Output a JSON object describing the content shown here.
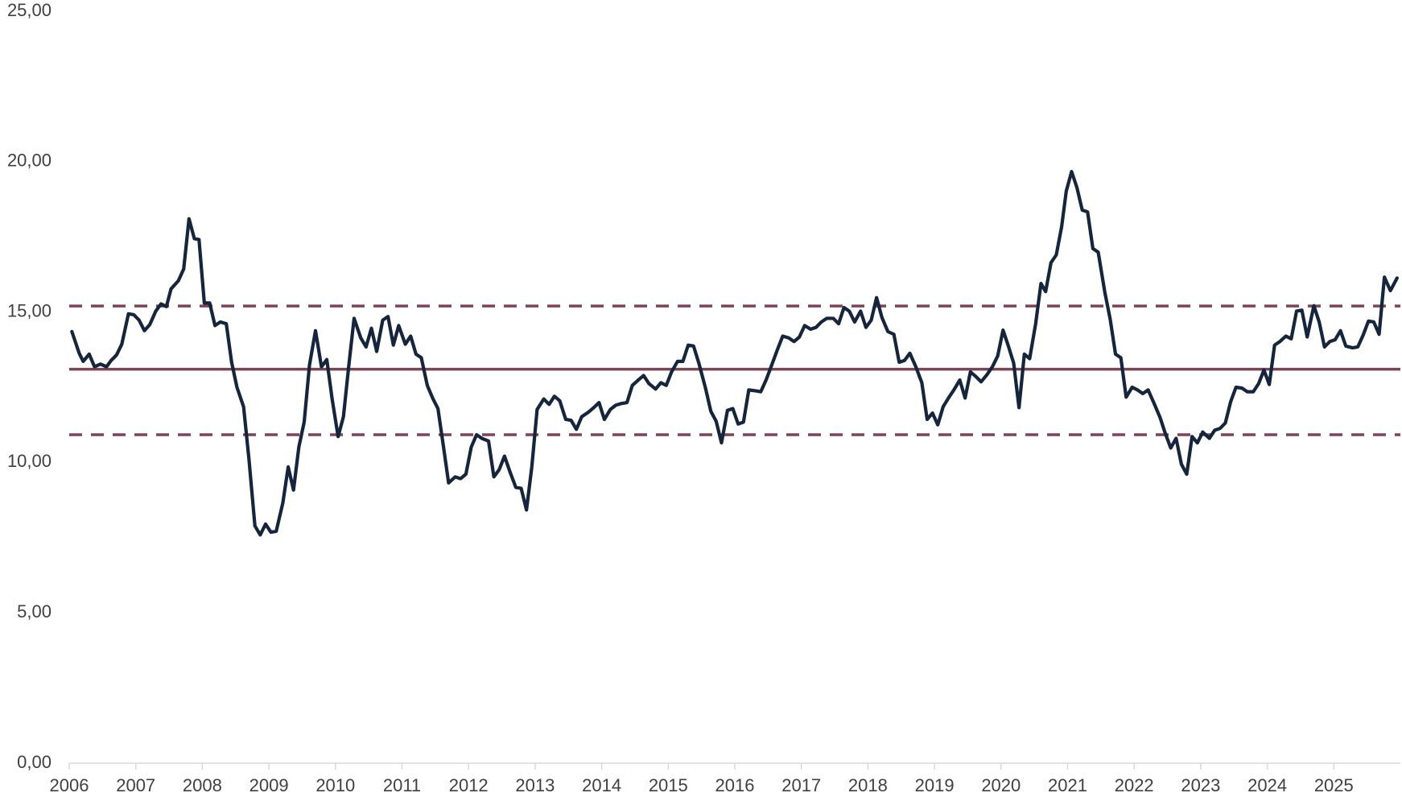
{
  "chart_data": {
    "type": "line",
    "x": [
      2006.04,
      2006.15,
      2006.21,
      2006.3,
      2006.38,
      2006.47,
      2006.56,
      2006.63,
      2006.71,
      2006.79,
      2006.89,
      2006.97,
      2007.05,
      2007.13,
      2007.21,
      2007.3,
      2007.38,
      2007.46,
      2007.53,
      2007.64,
      2007.72,
      2007.8,
      2007.88,
      2007.95,
      2008.03,
      2008.11,
      2008.19,
      2008.27,
      2008.36,
      2008.44,
      2008.52,
      2008.62,
      2008.7,
      2008.79,
      2008.87,
      2008.95,
      2009.03,
      2009.11,
      2009.21,
      2009.29,
      2009.37,
      2009.45,
      2009.53,
      2009.61,
      2009.7,
      2009.79,
      2009.87,
      2009.95,
      2010.04,
      2010.12,
      2010.2,
      2010.28,
      2010.38,
      2010.46,
      2010.54,
      2010.62,
      2010.71,
      2010.79,
      2010.87,
      2010.95,
      2011.05,
      2011.13,
      2011.21,
      2011.29,
      2011.38,
      2011.46,
      2011.54,
      2011.62,
      2011.7,
      2011.8,
      2011.88,
      2011.96,
      2012.04,
      2012.12,
      2012.2,
      2012.3,
      2012.38,
      2012.46,
      2012.54,
      2012.62,
      2012.71,
      2012.79,
      2012.87,
      2012.95,
      2013.03,
      2013.13,
      2013.21,
      2013.29,
      2013.37,
      2013.46,
      2013.54,
      2013.62,
      2013.7,
      2013.8,
      2013.88,
      2013.96,
      2014.04,
      2014.13,
      2014.21,
      2014.3,
      2014.38,
      2014.46,
      2014.55,
      2014.63,
      2014.71,
      2014.81,
      2014.89,
      2014.97,
      2015.05,
      2015.14,
      2015.22,
      2015.3,
      2015.38,
      2015.46,
      2015.56,
      2015.64,
      2015.72,
      2015.8,
      2015.89,
      2015.97,
      2016.05,
      2016.13,
      2016.21,
      2016.31,
      2016.39,
      2016.47,
      2016.55,
      2016.64,
      2016.72,
      2016.81,
      2016.89,
      2016.97,
      2017.05,
      2017.14,
      2017.22,
      2017.3,
      2017.38,
      2017.48,
      2017.56,
      2017.64,
      2017.72,
      2017.8,
      2017.89,
      2017.97,
      2018.05,
      2018.13,
      2018.21,
      2018.3,
      2018.39,
      2018.47,
      2018.55,
      2018.63,
      2018.72,
      2018.81,
      2018.89,
      2018.97,
      2019.05,
      2019.13,
      2019.21,
      2019.3,
      2019.38,
      2019.46,
      2019.54,
      2019.62,
      2019.7,
      2019.79,
      2019.87,
      2019.95,
      2020.03,
      2020.11,
      2020.19,
      2020.27,
      2020.35,
      2020.43,
      2020.52,
      2020.6,
      2020.67,
      2020.75,
      2020.83,
      2020.91,
      2020.98,
      2021.06,
      2021.14,
      2021.22,
      2021.3,
      2021.38,
      2021.46,
      2021.56,
      2021.64,
      2021.72,
      2021.8,
      2021.88,
      2021.97,
      2022.05,
      2022.13,
      2022.21,
      2022.3,
      2022.39,
      2022.47,
      2022.55,
      2022.63,
      2022.71,
      2022.79,
      2022.87,
      2022.95,
      2023.03,
      2023.13,
      2023.21,
      2023.29,
      2023.37,
      2023.45,
      2023.53,
      2023.62,
      2023.7,
      2023.79,
      2023.87,
      2023.95,
      2024.03,
      2024.11,
      2024.19,
      2024.28,
      2024.36,
      2024.44,
      2024.52,
      2024.6,
      2024.7,
      2024.78,
      2024.86,
      2024.94,
      2025.02,
      2025.1,
      2025.18,
      2025.28,
      2025.36,
      2025.44,
      2025.52,
      2025.6,
      2025.68,
      2025.76,
      2025.85,
      2025.95
    ],
    "series": [
      {
        "color": "#14253d",
        "values": [
          14.35,
          13.63,
          13.36,
          13.6,
          13.18,
          13.27,
          13.18,
          13.39,
          13.57,
          13.93,
          14.94,
          14.91,
          14.73,
          14.38,
          14.58,
          15.03,
          15.27,
          15.18,
          15.77,
          16.04,
          16.43,
          18.1,
          17.44,
          17.41,
          15.3,
          15.3,
          14.55,
          14.67,
          14.61,
          13.33,
          12.5,
          11.85,
          10.12,
          7.89,
          7.59,
          7.95,
          7.68,
          7.71,
          8.66,
          9.85,
          9.08,
          10.51,
          11.34,
          13.24,
          14.38,
          13.18,
          13.42,
          12.11,
          10.86,
          11.52,
          13.21,
          14.79,
          14.14,
          13.84,
          14.46,
          13.69,
          14.73,
          14.85,
          13.9,
          14.55,
          13.93,
          14.2,
          13.6,
          13.48,
          12.56,
          12.14,
          11.79,
          10.57,
          9.32,
          9.52,
          9.46,
          9.61,
          10.51,
          10.92,
          10.8,
          10.71,
          9.52,
          9.76,
          10.21,
          9.7,
          9.17,
          9.14,
          8.42,
          9.85,
          11.76,
          12.11,
          11.93,
          12.2,
          12.05,
          11.43,
          11.4,
          11.1,
          11.52,
          11.67,
          11.82,
          11.99,
          11.43,
          11.76,
          11.9,
          11.96,
          11.99,
          12.56,
          12.74,
          12.89,
          12.62,
          12.44,
          12.65,
          12.56,
          13.01,
          13.36,
          13.36,
          13.9,
          13.87,
          13.3,
          12.47,
          11.7,
          11.37,
          10.65,
          11.73,
          11.79,
          11.28,
          11.34,
          12.41,
          12.38,
          12.35,
          12.74,
          13.21,
          13.75,
          14.2,
          14.14,
          14.02,
          14.17,
          14.55,
          14.43,
          14.49,
          14.67,
          14.79,
          14.79,
          14.61,
          15.15,
          15.03,
          14.67,
          15.03,
          14.49,
          14.73,
          15.48,
          14.82,
          14.35,
          14.26,
          13.33,
          13.39,
          13.63,
          13.18,
          12.65,
          11.43,
          11.64,
          11.25,
          11.85,
          12.14,
          12.44,
          12.74,
          12.14,
          13.01,
          12.86,
          12.68,
          12.92,
          13.18,
          13.54,
          14.4,
          13.87,
          13.3,
          11.82,
          13.6,
          13.45,
          14.61,
          15.95,
          15.68,
          16.64,
          16.9,
          17.83,
          19.02,
          19.67,
          19.14,
          18.39,
          18.33,
          17.11,
          16.99,
          15.65,
          14.76,
          13.6,
          13.48,
          12.17,
          12.5,
          12.41,
          12.29,
          12.41,
          11.96,
          11.49,
          10.95,
          10.48,
          10.8,
          9.94,
          9.61,
          10.86,
          10.65,
          11.01,
          10.8,
          11.07,
          11.13,
          11.31,
          12.02,
          12.5,
          12.47,
          12.35,
          12.35,
          12.62,
          13.07,
          12.59,
          13.9,
          14.02,
          14.2,
          14.11,
          15.03,
          15.06,
          14.17,
          15.21,
          14.67,
          13.84,
          14.02,
          14.08,
          14.38,
          13.87,
          13.81,
          13.84,
          14.23,
          14.7,
          14.67,
          14.26,
          16.16,
          15.71,
          16.13
        ]
      }
    ],
    "reference_lines": [
      {
        "value": 13.1,
        "color": "#7b4556",
        "dashed": false
      },
      {
        "value": 15.2,
        "color": "#7b4556",
        "dashed": true
      },
      {
        "value": 10.92,
        "color": "#7b4556",
        "dashed": true
      }
    ],
    "xlim": [
      2006,
      2026
    ],
    "xticks": [
      2006,
      2007,
      2008,
      2009,
      2010,
      2011,
      2012,
      2013,
      2014,
      2015,
      2016,
      2017,
      2018,
      2019,
      2020,
      2021,
      2022,
      2023,
      2024,
      2025
    ],
    "ylim": [
      0,
      25
    ],
    "yticks": [
      {
        "value": 0,
        "label": "0,00"
      },
      {
        "value": 5,
        "label": "5,00"
      },
      {
        "value": 10,
        "label": "10,00"
      },
      {
        "value": 15,
        "label": "15,00"
      },
      {
        "value": 20,
        "label": "20,00"
      },
      {
        "value": 25,
        "label": "25,00"
      }
    ],
    "grid": false
  }
}
